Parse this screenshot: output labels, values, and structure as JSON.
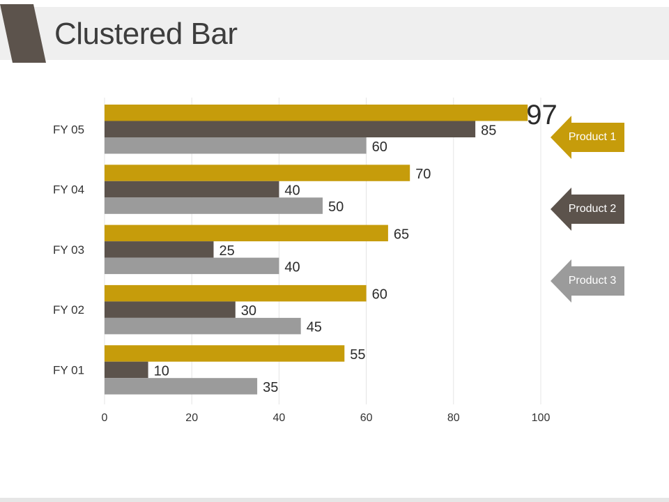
{
  "header": {
    "title": "Clustered Bar"
  },
  "colors": {
    "product1": "#c69c0b",
    "product2": "#5c534c",
    "product3": "#9b9b9b",
    "title_tab": "#5c534c",
    "grid": "#e4e4e4"
  },
  "chart_data": {
    "type": "bar",
    "orientation": "horizontal",
    "categories": [
      "FY 01",
      "FY 02",
      "FY 03",
      "FY 04",
      "FY 05"
    ],
    "series": [
      {
        "name": "Product 1",
        "values": [
          55,
          60,
          65,
          70,
          97
        ]
      },
      {
        "name": "Product 2",
        "values": [
          10,
          30,
          25,
          40,
          85
        ]
      },
      {
        "name": "Product 3",
        "values": [
          35,
          45,
          40,
          50,
          60
        ]
      }
    ],
    "x_ticks": [
      0,
      20,
      40,
      60,
      80,
      100
    ],
    "xlim": [
      0,
      100
    ],
    "grid": "vertical",
    "legend": "right",
    "data_labels": true
  }
}
